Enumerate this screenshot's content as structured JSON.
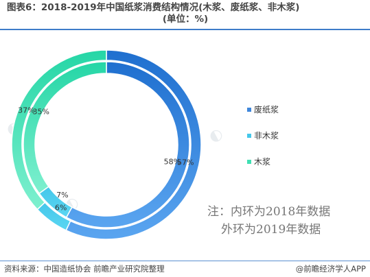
{
  "title": {
    "line1": "图表6：2018-2019年中国纸浆消费结构情况(木浆、废纸浆、非木浆)",
    "line2": "(单位：%)"
  },
  "chart_data": {
    "type": "donut",
    "title": "2018-2019年中国纸浆消费结构情况(木浆、废纸浆、非木浆)",
    "unit": "%",
    "categories": [
      "废纸浆",
      "非木浆",
      "木浆"
    ],
    "colors": [
      "#3f87db",
      "#45c7ea",
      "#3fe0b3"
    ],
    "series": [
      {
        "name": "2018年",
        "ring": "inner",
        "values": [
          58,
          7,
          35
        ]
      },
      {
        "name": "2019年",
        "ring": "outer",
        "values": [
          57,
          6,
          37
        ]
      }
    ]
  },
  "legend": [
    {
      "label": "废纸浆",
      "color": "#3f87db"
    },
    {
      "label": "非木浆",
      "color": "#45c7ea"
    },
    {
      "label": "木浆",
      "color": "#3fe0b3"
    }
  ],
  "note": {
    "line1": "注：内环为2018年数据",
    "line2": "外环为2019年数据"
  },
  "footer": {
    "source": "资料来源：中国造纸协会 前瞻产业研究院整理",
    "brand": "@前瞻经济学人APP"
  }
}
